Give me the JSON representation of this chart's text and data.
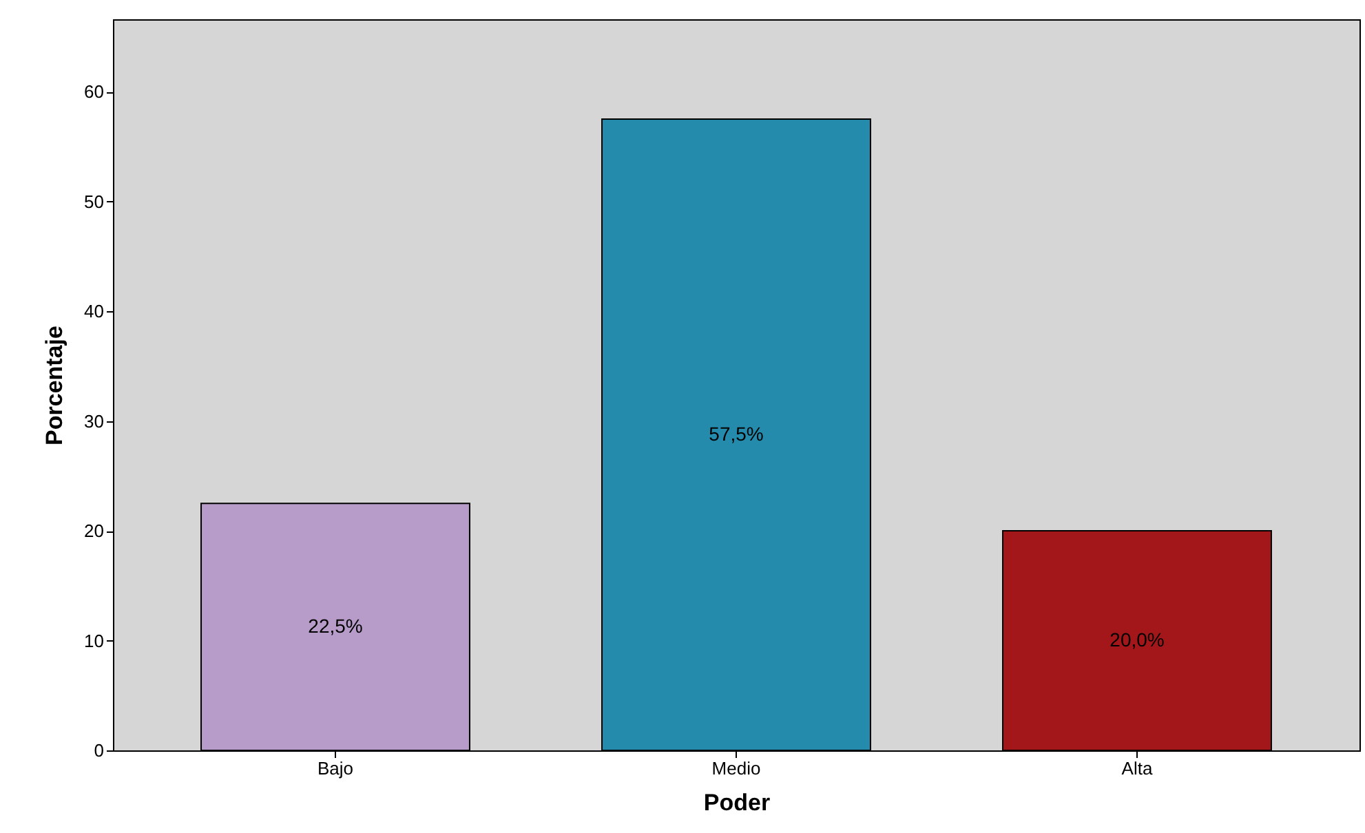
{
  "chart_data": {
    "type": "bar",
    "xlabel": "Poder",
    "ylabel": "Porcentaje",
    "categories": [
      "Bajo",
      "Medio",
      "Alta"
    ],
    "values": [
      22.5,
      57.5,
      20.0
    ],
    "colors": [
      "#b79bc8",
      "#248bad",
      "#a3171b"
    ],
    "value_labels": [
      "22,5%",
      "57,5%",
      "20,0%"
    ],
    "ylim": [
      0,
      66.6
    ],
    "yticks": [
      0,
      10,
      20,
      30,
      40,
      50,
      60
    ],
    "grid": false
  }
}
